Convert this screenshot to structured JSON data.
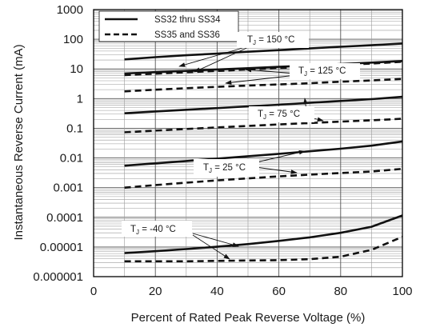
{
  "chart_data": {
    "type": "line",
    "xlabel": "Percent of Rated Peak Reverse Voltage (%)",
    "ylabel": "Instantaneous Reverse Current (mA)",
    "xlim": [
      0,
      100
    ],
    "ylim": [
      1e-06,
      1000
    ],
    "yscale": "log",
    "x_ticks": [
      "0",
      "20",
      "40",
      "60",
      "80",
      "100"
    ],
    "y_ticks": [
      "1000",
      "100",
      "10",
      "1",
      "0.1",
      "0.01",
      "0.001",
      "0.0001",
      "0.00001",
      "0.000001"
    ],
    "grid": true,
    "legend_position": "top-left",
    "legend": [
      {
        "label": "SS32 thru SS34",
        "style": "solid"
      },
      {
        "label": "SS35 and SS36",
        "style": "dashed"
      }
    ],
    "temperature_labels": [
      {
        "prefix": "T",
        "sub": "J",
        "suffix": " = 150 °C"
      },
      {
        "prefix": "T",
        "sub": "J",
        "suffix": " = 125 °C"
      },
      {
        "prefix": "T",
        "sub": "J",
        "suffix": " = 75 °C"
      },
      {
        "prefix": "T",
        "sub": "J",
        "suffix": " = 25 °C"
      },
      {
        "prefix": "T",
        "sub": "J",
        "suffix": " = -40 °C"
      }
    ],
    "series": [
      {
        "style": "solid",
        "x": [
          10,
          20,
          30,
          40,
          50,
          60,
          70,
          80,
          90,
          100
        ],
        "y": [
          21,
          25,
          29,
          33,
          38,
          43,
          49,
          56,
          63,
          72
        ]
      },
      {
        "style": "solid",
        "x": [
          10,
          20,
          30,
          40,
          50,
          60,
          70,
          80,
          90,
          100
        ],
        "y": [
          7,
          7.8,
          8.6,
          9.6,
          10.6,
          11.8,
          13,
          14.6,
          16.3,
          18.5
        ]
      },
      {
        "style": "dashed",
        "x": [
          10,
          20,
          30,
          40,
          50,
          60,
          70,
          80,
          90,
          100
        ],
        "y": [
          6.2,
          6.9,
          7.7,
          8.6,
          9.6,
          10.7,
          12,
          13.5,
          15.2,
          17.5
        ]
      },
      {
        "style": "dashed",
        "x": [
          10,
          20,
          30,
          40,
          50,
          60,
          70,
          80,
          90,
          100
        ],
        "y": [
          1.75,
          2,
          2.25,
          2.5,
          2.75,
          3,
          3.3,
          3.7,
          4.1,
          4.6
        ]
      },
      {
        "style": "solid",
        "x": [
          10,
          20,
          30,
          40,
          50,
          60,
          70,
          80,
          90,
          100
        ],
        "y": [
          0.32,
          0.37,
          0.42,
          0.48,
          0.55,
          0.62,
          0.72,
          0.83,
          0.96,
          1.15
        ]
      },
      {
        "style": "dashed",
        "x": [
          10,
          20,
          30,
          40,
          50,
          60,
          70,
          80,
          90,
          100
        ],
        "y": [
          0.073,
          0.083,
          0.095,
          0.107,
          0.12,
          0.135,
          0.15,
          0.168,
          0.185,
          0.21
        ]
      },
      {
        "style": "solid",
        "x": [
          10,
          20,
          30,
          40,
          50,
          60,
          70,
          80,
          90,
          100
        ],
        "y": [
          0.0055,
          0.0066,
          0.0079,
          0.0095,
          0.0114,
          0.0138,
          0.0168,
          0.0205,
          0.026,
          0.036
        ]
      },
      {
        "style": "dashed",
        "x": [
          10,
          20,
          30,
          40,
          50,
          60,
          70,
          80,
          90,
          100
        ],
        "y": [
          0.001,
          0.00122,
          0.00147,
          0.00175,
          0.00205,
          0.0024,
          0.00275,
          0.0031,
          0.0035,
          0.0043
        ]
      },
      {
        "style": "solid",
        "x": [
          10,
          20,
          30,
          40,
          50,
          60,
          70,
          80,
          90,
          100
        ],
        "y": [
          6.2e-06,
          7.2e-06,
          8.5e-06,
          1.02e-05,
          1.25e-05,
          1.6e-05,
          2.1e-05,
          3e-05,
          4.8e-05,
          0.000115
        ]
      },
      {
        "style": "dashed",
        "x": [
          10,
          20,
          30,
          40,
          50,
          60,
          70,
          80,
          90,
          100
        ],
        "y": [
          3.3e-06,
          3.3e-06,
          3.3e-06,
          3.4e-06,
          3.5e-06,
          3.6e-06,
          3.9e-06,
          4.7e-06,
          8e-06,
          2.2e-05
        ]
      }
    ]
  }
}
